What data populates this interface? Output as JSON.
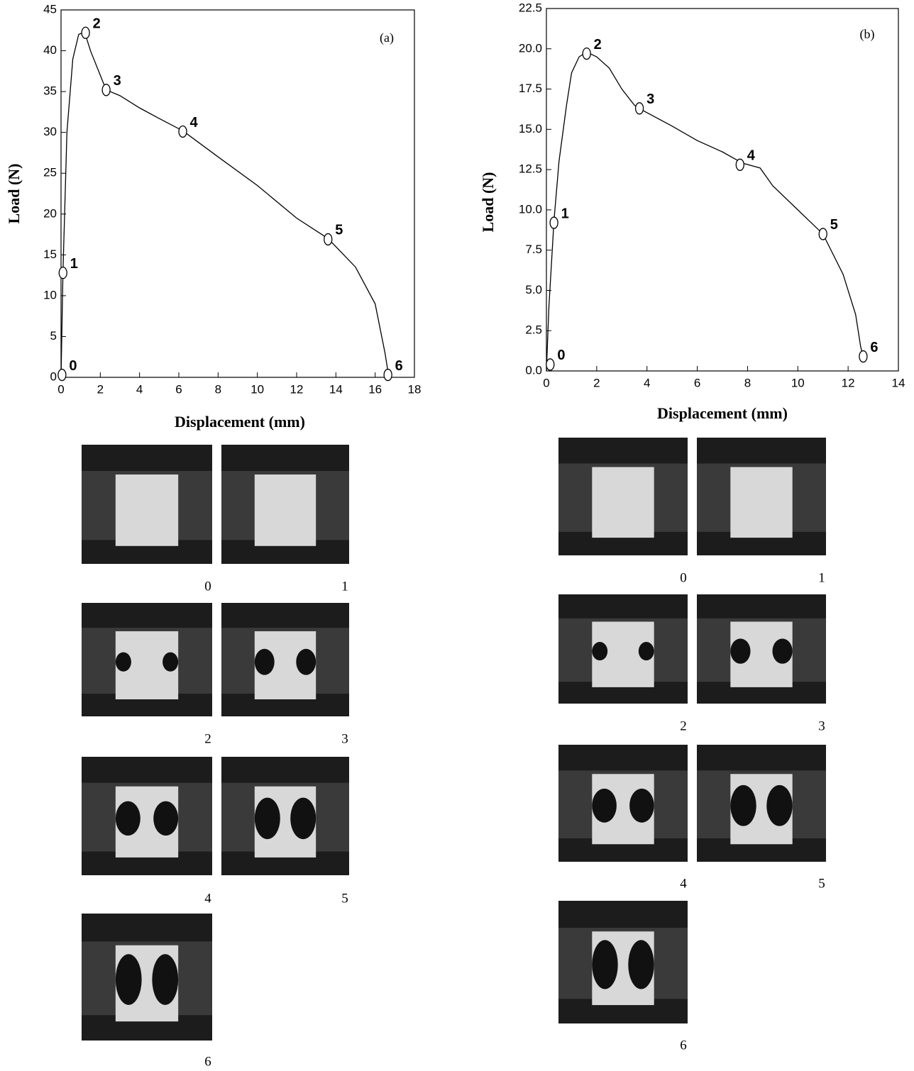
{
  "chart_data": [
    {
      "type": "line",
      "panel_label": "(a)",
      "x_label": "Displacement (mm)",
      "y_label": "Load (N)",
      "x": [
        0,
        0.1,
        0.3,
        0.6,
        0.9,
        1.2,
        1.5,
        2.0,
        2.3,
        3,
        4,
        5,
        6.2,
        8,
        10,
        12,
        13.6,
        15,
        16,
        16.5,
        16.7
      ],
      "values": [
        0,
        13,
        30,
        39,
        42,
        42.3,
        40,
        37,
        35.2,
        34.5,
        33,
        31.7,
        30.2,
        27,
        23.5,
        19.5,
        17,
        13.5,
        9,
        3,
        0
      ],
      "color": "#000000",
      "markers": {
        "x": [
          0.05,
          0.1,
          1.25,
          2.3,
          6.2,
          13.6,
          16.65
        ],
        "y": [
          0.3,
          12.8,
          42.2,
          35.2,
          30.1,
          16.9,
          0.3
        ],
        "labels": [
          "0",
          "1",
          "2",
          "3",
          "4",
          "5",
          "6"
        ]
      },
      "xlim": [
        0,
        18
      ],
      "xticks": [
        0,
        2,
        4,
        6,
        8,
        10,
        12,
        14,
        16,
        18
      ],
      "ylim": [
        0,
        45
      ],
      "yticks": [
        0,
        5,
        10,
        15,
        20,
        25,
        30,
        35,
        40,
        45
      ],
      "photo_captions": [
        "0",
        "1",
        "2",
        "3",
        "4",
        "5",
        "6"
      ]
    },
    {
      "type": "line",
      "panel_label": "(b)",
      "x_label": "Displacement (mm)",
      "y_label": "Load (N)",
      "x": [
        0,
        0.1,
        0.3,
        0.5,
        0.8,
        1.0,
        1.3,
        1.6,
        2,
        2.5,
        3,
        3.5,
        3.8,
        5,
        6,
        7,
        7.8,
        8.5,
        9,
        10,
        11,
        11.8,
        12.3,
        12.5,
        12.6
      ],
      "values": [
        0,
        4,
        9.3,
        13,
        16.5,
        18.5,
        19.5,
        19.8,
        19.5,
        18.8,
        17.5,
        16.5,
        16.2,
        15.2,
        14.3,
        13.6,
        12.9,
        12.6,
        11.5,
        10,
        8.5,
        6,
        3.5,
        1.5,
        0.9
      ],
      "color": "#000000",
      "markers": {
        "x": [
          0.15,
          0.3,
          1.6,
          3.7,
          7.7,
          11,
          12.6
        ],
        "y": [
          0.4,
          9.2,
          19.7,
          16.3,
          12.8,
          8.5,
          0.9
        ],
        "labels": [
          "0",
          "1",
          "2",
          "3",
          "4",
          "5",
          "6"
        ]
      },
      "xlim": [
        0,
        14
      ],
      "xticks": [
        0,
        2,
        4,
        6,
        8,
        10,
        12,
        14
      ],
      "ylim": [
        0,
        22.5
      ],
      "yticks": [
        {
          "value": 0,
          "label": "0.0"
        },
        2.5,
        {
          "value": 5,
          "label": "5.0"
        },
        7.5,
        {
          "value": 10,
          "label": "10.0"
        },
        12.5,
        {
          "value": 15,
          "label": "15.0"
        },
        17.5,
        {
          "value": 20,
          "label": "20.0"
        },
        22.5
      ],
      "photo_captions": [
        "0",
        "1",
        "2",
        "3",
        "4",
        "5",
        "6"
      ]
    }
  ]
}
